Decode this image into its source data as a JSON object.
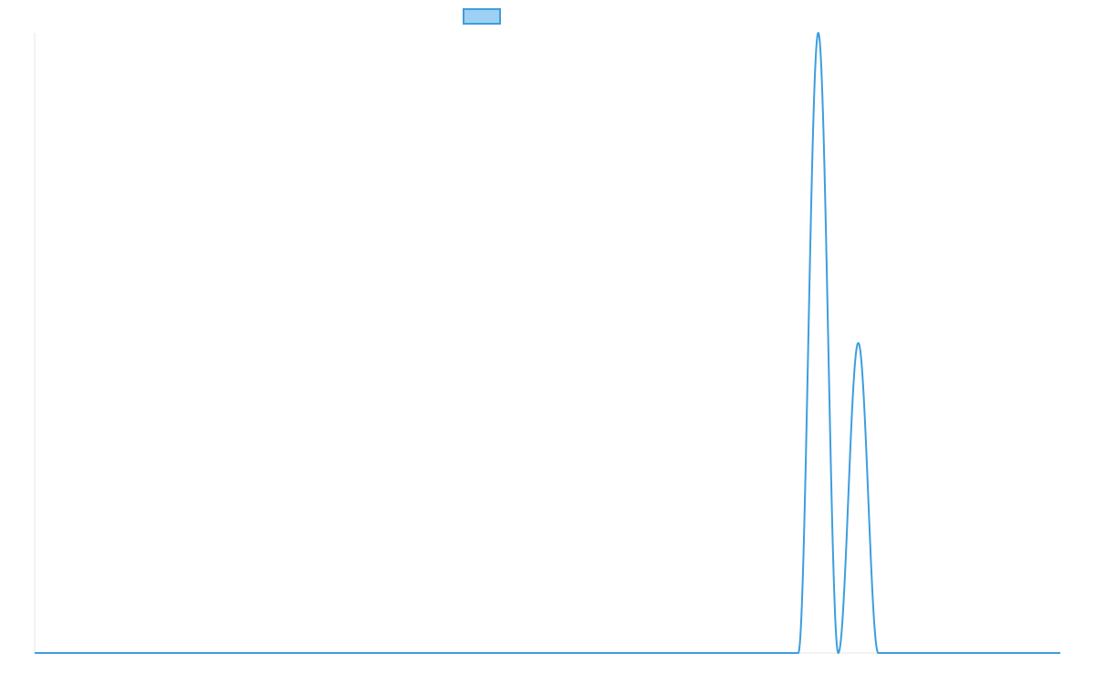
{
  "chart_data": {
    "type": "line",
    "title": "",
    "xlabel": "",
    "ylabel": "",
    "grid": false,
    "legend": {
      "placement": "top-center",
      "entries": [
        {
          "label": "",
          "fill": "#9dd0f3",
          "stroke": "#3c9ede"
        }
      ]
    },
    "xlim": [
      0,
      100
    ],
    "ylim": [
      0,
      1
    ],
    "x_ticks": [],
    "y_ticks": [],
    "series": [
      {
        "color": "#3c9ede",
        "peaks": [
          {
            "center": 76.4,
            "height": 1.0,
            "half_width": 1.95
          },
          {
            "center": 80.3,
            "height": 0.5,
            "half_width": 1.95
          }
        ],
        "x": [
          0,
          74.45,
          74.8,
          75.2,
          75.6,
          76.0,
          76.4,
          76.8,
          77.2,
          77.6,
          78.0,
          78.35,
          78.7,
          79.1,
          79.5,
          79.9,
          80.3,
          80.7,
          81.1,
          81.5,
          81.9,
          82.25,
          100
        ],
        "values": [
          0,
          0,
          0.16,
          0.44,
          0.75,
          0.96,
          1.0,
          0.96,
          0.75,
          0.44,
          0.16,
          0,
          0.08,
          0.22,
          0.37,
          0.48,
          0.5,
          0.48,
          0.37,
          0.22,
          0.08,
          0,
          0
        ]
      }
    ]
  }
}
